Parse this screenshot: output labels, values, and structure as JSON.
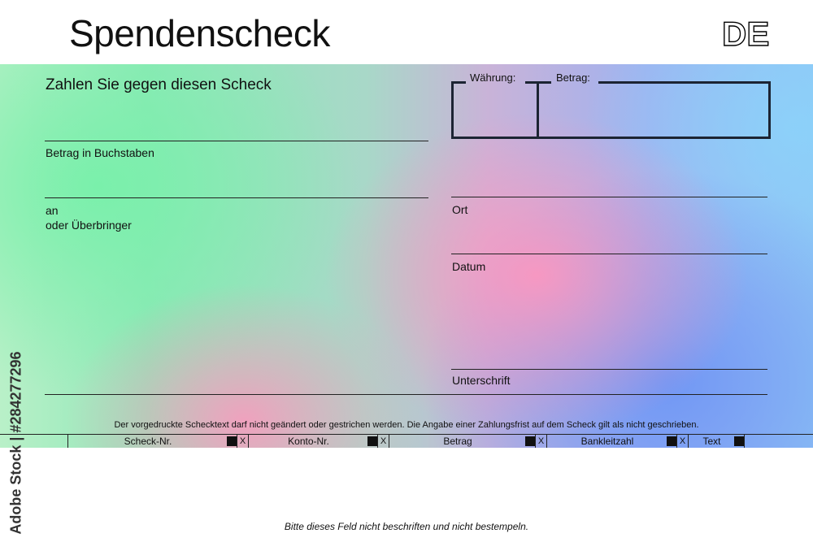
{
  "header": {
    "title": "Spendenscheck",
    "country_code": "DE"
  },
  "check": {
    "pay_text": "Zahlen Sie gegen diesen Scheck",
    "amount_words_label": "Betrag in Buchstaben",
    "payee_label_1": "an",
    "payee_label_2": "oder Überbringer",
    "currency_label": "Währung:",
    "amount_label": "Betrag:",
    "place_label": "Ort",
    "date_label": "Datum",
    "signature_label": "Unterschrift",
    "fine_print": "Der vorgedruckte Schecktext darf nicht geändert oder gestrichen werden. Die Angabe einer Zahlungsfrist auf dem Scheck gilt als nicht geschrieben.",
    "codeline": {
      "check_no": "Scheck-Nr.",
      "account_no": "Konto-Nr.",
      "amount": "Betrag",
      "bank_code": "Bankleitzahl",
      "text": "Text",
      "separator": "X"
    }
  },
  "footer": {
    "note": "Bitte dieses Feld nicht beschriften und nicht bestempeln."
  },
  "watermark": {
    "side_text": "Adobe Stock | #284277296"
  }
}
